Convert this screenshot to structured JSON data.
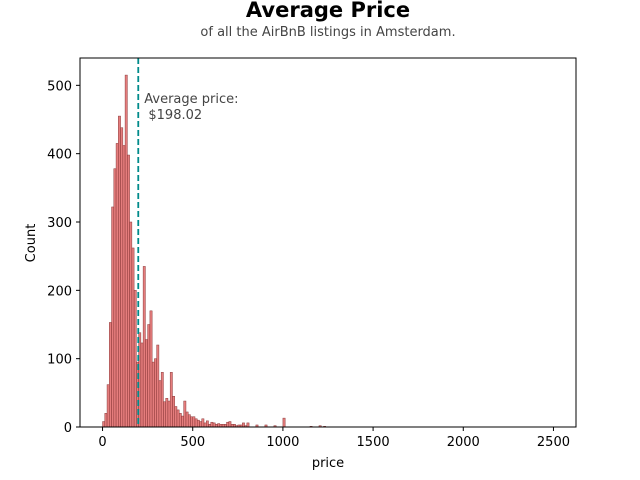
{
  "chart_data": {
    "type": "bar",
    "title": "Average Price",
    "subtitle": "of all the AirBnB listings in Amsterdam.",
    "xlabel": "price",
    "ylabel": "Count",
    "xlim": [
      -125,
      2625
    ],
    "ylim": [
      0,
      540
    ],
    "x_ticks": [
      0,
      500,
      1000,
      1500,
      2000,
      2500
    ],
    "y_ticks": [
      0,
      100,
      200,
      300,
      400,
      500
    ],
    "grid": false,
    "bin_width": 12.5,
    "bin_starts": [
      0,
      12.5,
      25,
      37.5,
      50,
      62.5,
      75,
      87.5,
      100,
      112.5,
      125,
      137.5,
      150,
      162.5,
      175,
      187.5,
      200,
      212.5,
      225,
      237.5,
      250,
      262.5,
      275,
      287.5,
      300,
      312.5,
      325,
      337.5,
      350,
      362.5,
      375,
      387.5,
      400,
      412.5,
      425,
      437.5,
      450,
      462.5,
      475,
      487.5,
      500,
      512.5,
      525,
      537.5,
      550,
      562.5,
      575,
      587.5,
      600,
      612.5,
      625,
      637.5,
      650,
      662.5,
      675,
      687.5,
      700,
      712.5,
      725,
      737.5,
      750,
      762.5,
      775,
      787.5,
      800,
      850,
      900,
      950,
      1000,
      1150,
      1200,
      1225
    ],
    "counts": [
      8,
      20,
      62,
      153,
      322,
      378,
      415,
      455,
      438,
      412,
      515,
      398,
      300,
      262,
      200,
      95,
      138,
      123,
      235,
      128,
      150,
      170,
      95,
      100,
      120,
      68,
      80,
      37,
      42,
      38,
      80,
      45,
      30,
      25,
      20,
      16,
      38,
      22,
      18,
      15,
      15,
      12,
      10,
      8,
      12,
      6,
      9,
      4,
      7,
      6,
      4,
      5,
      4,
      4,
      4,
      7,
      8,
      4,
      4,
      2,
      3,
      3,
      6,
      2,
      6,
      3,
      3,
      2,
      13,
      1,
      2,
      1
    ],
    "bar_color": "#e06666",
    "bar_edge_color": "#8b3a3a",
    "mean_line": {
      "value": 198.02,
      "color": "#008b8b",
      "label_line1": "Average price:",
      "label_line2": " $198.02"
    }
  }
}
